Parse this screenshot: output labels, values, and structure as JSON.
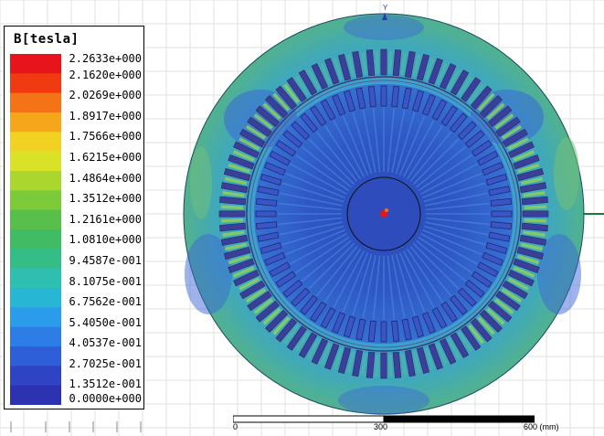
{
  "legend": {
    "title": "B[tesla]",
    "values": [
      "2.2633e+000",
      "2.1620e+000",
      "2.0269e+000",
      "1.8917e+000",
      "1.7566e+000",
      "1.6215e+000",
      "1.4864e+000",
      "1.3512e+000",
      "1.2161e+000",
      "1.0810e+000",
      "9.4587e-001",
      "8.1075e-001",
      "6.7562e-001",
      "5.4050e-001",
      "4.0537e-001",
      "2.7025e-001",
      "1.3512e-001",
      "0.0000e+000"
    ],
    "colors": [
      "#e8141b",
      "#ef3a12",
      "#f47316",
      "#f6a61b",
      "#f1d222",
      "#d9e227",
      "#aad62e",
      "#7cca3a",
      "#58c04a",
      "#41bc65",
      "#35bd88",
      "#2fbfb0",
      "#27b7d4",
      "#2a9cea",
      "#2c7de6",
      "#2e5ed8",
      "#2f44c4",
      "#2d33b0"
    ]
  },
  "axis": {
    "label": "Y"
  },
  "scale": {
    "labels": [
      "0",
      "300",
      "600 (mm)"
    ]
  },
  "colors": {
    "background": "#ffffff",
    "grid": "#e2e2e2",
    "outer_ring": "#2fa6c8",
    "stator_back": "#3d9ad6",
    "teeth_light": "#86c66b",
    "rotor_field": "#2f52c0",
    "shaft_hot": "#e8141b",
    "axis_marker": "#2541a8",
    "axis_line": "#1a7a3a"
  }
}
